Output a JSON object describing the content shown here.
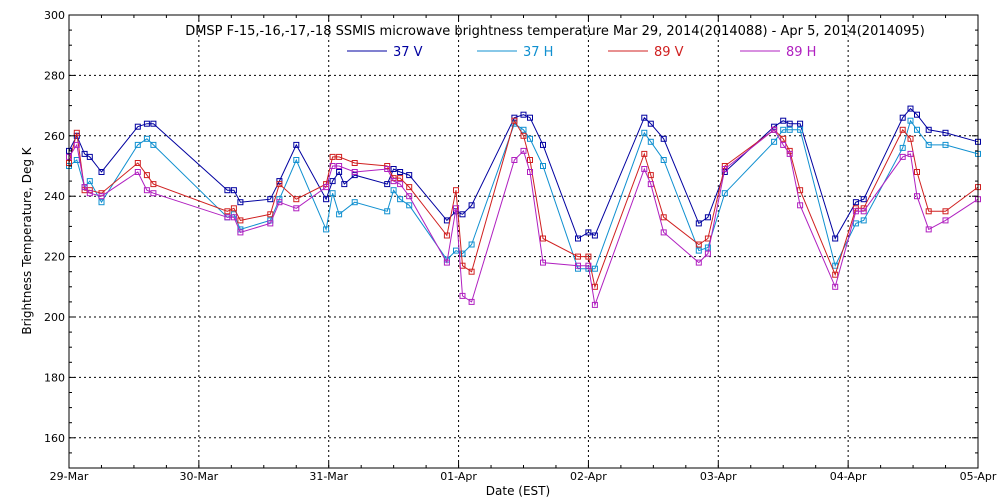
{
  "chart_data": {
    "type": "line",
    "title": "DMSP F-15,-16,-17,-18 SSMIS microwave brightness temperature Mar 29, 2014(2014088) - Apr  5, 2014(2014095)",
    "xlabel": "Date (EST)",
    "ylabel": "Brightness Temperature, Deg K",
    "ylim": [
      150,
      300
    ],
    "xlim": [
      0,
      7
    ],
    "yticks": [
      160,
      180,
      200,
      220,
      240,
      260,
      280,
      300
    ],
    "xticks": [
      {
        "value": 0,
        "label": "29-Mar"
      },
      {
        "value": 1,
        "label": "30-Mar"
      },
      {
        "value": 2,
        "label": "31-Mar"
      },
      {
        "value": 3,
        "label": "01-Apr"
      },
      {
        "value": 4,
        "label": "02-Apr"
      },
      {
        "value": 5,
        "label": "03-Apr"
      },
      {
        "value": 6,
        "label": "04-Apr"
      },
      {
        "value": 7,
        "label": "05-Apr"
      }
    ],
    "grid": true,
    "legend_position": "top",
    "series": [
      {
        "name": "37 V",
        "color": "#0000a0",
        "points": [
          [
            0.0,
            255
          ],
          [
            0.06,
            260
          ],
          [
            0.12,
            254
          ],
          [
            0.16,
            253
          ],
          [
            0.25,
            248
          ],
          [
            0.53,
            263
          ],
          [
            0.6,
            264
          ],
          [
            0.65,
            264
          ],
          [
            1.22,
            242
          ],
          [
            1.27,
            242
          ],
          [
            1.32,
            238
          ],
          [
            1.55,
            239
          ],
          [
            1.62,
            245
          ],
          [
            1.75,
            257
          ],
          [
            1.98,
            239
          ],
          [
            2.03,
            245
          ],
          [
            2.08,
            248
          ],
          [
            2.12,
            244
          ],
          [
            2.2,
            247
          ],
          [
            2.45,
            244
          ],
          [
            2.5,
            249
          ],
          [
            2.55,
            248
          ],
          [
            2.62,
            247
          ],
          [
            2.91,
            232
          ],
          [
            2.98,
            235
          ],
          [
            3.03,
            234
          ],
          [
            3.1,
            237
          ],
          [
            3.43,
            266
          ],
          [
            3.5,
            267
          ],
          [
            3.55,
            266
          ],
          [
            3.65,
            257
          ],
          [
            3.92,
            226
          ],
          [
            4.0,
            228
          ],
          [
            4.05,
            227
          ],
          [
            4.43,
            266
          ],
          [
            4.48,
            264
          ],
          [
            4.58,
            259
          ],
          [
            4.85,
            231
          ],
          [
            4.92,
            233
          ],
          [
            5.05,
            248
          ],
          [
            5.43,
            263
          ],
          [
            5.5,
            265
          ],
          [
            5.55,
            264
          ],
          [
            5.63,
            264
          ],
          [
            5.9,
            226
          ],
          [
            6.06,
            238
          ],
          [
            6.12,
            239
          ],
          [
            6.42,
            266
          ],
          [
            6.48,
            269
          ],
          [
            6.53,
            267
          ],
          [
            6.62,
            262
          ],
          [
            6.75,
            261
          ],
          [
            7.0,
            258
          ]
        ]
      },
      {
        "name": "37 H",
        "color": "#1090d0",
        "points": [
          [
            0.0,
            250
          ],
          [
            0.06,
            252
          ],
          [
            0.12,
            243
          ],
          [
            0.16,
            245
          ],
          [
            0.25,
            238
          ],
          [
            0.53,
            257
          ],
          [
            0.6,
            259
          ],
          [
            0.65,
            257
          ],
          [
            1.22,
            233
          ],
          [
            1.27,
            234
          ],
          [
            1.32,
            229
          ],
          [
            1.55,
            232
          ],
          [
            1.62,
            239
          ],
          [
            1.75,
            252
          ],
          [
            1.98,
            229
          ],
          [
            2.03,
            241
          ],
          [
            2.08,
            234
          ],
          [
            2.2,
            238
          ],
          [
            2.45,
            235
          ],
          [
            2.5,
            242
          ],
          [
            2.55,
            239
          ],
          [
            2.62,
            237
          ],
          [
            2.91,
            219
          ],
          [
            2.98,
            222
          ],
          [
            3.03,
            221
          ],
          [
            3.1,
            224
          ],
          [
            3.43,
            264
          ],
          [
            3.5,
            262
          ],
          [
            3.55,
            259
          ],
          [
            3.65,
            250
          ],
          [
            3.92,
            216
          ],
          [
            4.0,
            216
          ],
          [
            4.05,
            216
          ],
          [
            4.43,
            261
          ],
          [
            4.48,
            258
          ],
          [
            4.58,
            252
          ],
          [
            4.85,
            222
          ],
          [
            4.92,
            223
          ],
          [
            5.05,
            241
          ],
          [
            5.43,
            258
          ],
          [
            5.5,
            262
          ],
          [
            5.55,
            262
          ],
          [
            5.63,
            262
          ],
          [
            5.9,
            217
          ],
          [
            6.06,
            231
          ],
          [
            6.12,
            232
          ],
          [
            6.42,
            256
          ],
          [
            6.48,
            265
          ],
          [
            6.53,
            262
          ],
          [
            6.62,
            257
          ],
          [
            6.75,
            257
          ],
          [
            7.0,
            254
          ]
        ]
      },
      {
        "name": "89 V",
        "color": "#d02020",
        "points": [
          [
            0.0,
            251
          ],
          [
            0.06,
            261
          ],
          [
            0.12,
            242
          ],
          [
            0.16,
            242
          ],
          [
            0.25,
            241
          ],
          [
            0.53,
            251
          ],
          [
            0.6,
            247
          ],
          [
            0.65,
            244
          ],
          [
            1.22,
            235
          ],
          [
            1.27,
            236
          ],
          [
            1.32,
            232
          ],
          [
            1.55,
            234
          ],
          [
            1.62,
            244
          ],
          [
            1.75,
            239
          ],
          [
            1.98,
            244
          ],
          [
            2.03,
            253
          ],
          [
            2.08,
            253
          ],
          [
            2.2,
            251
          ],
          [
            2.45,
            250
          ],
          [
            2.5,
            246
          ],
          [
            2.55,
            246
          ],
          [
            2.62,
            243
          ],
          [
            2.91,
            227
          ],
          [
            2.98,
            242
          ],
          [
            3.03,
            217
          ],
          [
            3.1,
            215
          ],
          [
            3.43,
            265
          ],
          [
            3.5,
            260
          ],
          [
            3.55,
            252
          ],
          [
            3.65,
            226
          ],
          [
            3.92,
            220
          ],
          [
            4.0,
            220
          ],
          [
            4.05,
            210
          ],
          [
            4.43,
            254
          ],
          [
            4.48,
            247
          ],
          [
            4.58,
            233
          ],
          [
            4.85,
            224
          ],
          [
            4.92,
            226
          ],
          [
            5.05,
            250
          ],
          [
            5.43,
            262
          ],
          [
            5.5,
            259
          ],
          [
            5.55,
            255
          ],
          [
            5.63,
            242
          ],
          [
            5.9,
            214
          ],
          [
            6.06,
            236
          ],
          [
            6.12,
            236
          ],
          [
            6.42,
            262
          ],
          [
            6.48,
            259
          ],
          [
            6.53,
            248
          ],
          [
            6.62,
            235
          ],
          [
            6.75,
            235
          ],
          [
            7.0,
            243
          ]
        ]
      },
      {
        "name": "89 H",
        "color": "#b020c0",
        "points": [
          [
            0.0,
            253
          ],
          [
            0.06,
            257
          ],
          [
            0.12,
            243
          ],
          [
            0.16,
            241
          ],
          [
            0.25,
            240
          ],
          [
            0.53,
            248
          ],
          [
            0.6,
            242
          ],
          [
            0.65,
            241
          ],
          [
            1.22,
            233
          ],
          [
            1.27,
            233
          ],
          [
            1.32,
            228
          ],
          [
            1.55,
            231
          ],
          [
            1.62,
            238
          ],
          [
            1.75,
            236
          ],
          [
            1.98,
            243
          ],
          [
            2.03,
            250
          ],
          [
            2.08,
            250
          ],
          [
            2.2,
            248
          ],
          [
            2.45,
            249
          ],
          [
            2.5,
            245
          ],
          [
            2.55,
            244
          ],
          [
            2.62,
            240
          ],
          [
            2.91,
            218
          ],
          [
            2.98,
            236
          ],
          [
            3.03,
            207
          ],
          [
            3.1,
            205
          ],
          [
            3.43,
            252
          ],
          [
            3.5,
            255
          ],
          [
            3.55,
            248
          ],
          [
            3.65,
            218
          ],
          [
            3.92,
            217
          ],
          [
            4.0,
            217
          ],
          [
            4.05,
            204
          ],
          [
            4.43,
            249
          ],
          [
            4.48,
            244
          ],
          [
            4.58,
            228
          ],
          [
            4.85,
            218
          ],
          [
            4.92,
            221
          ],
          [
            5.05,
            249
          ],
          [
            5.43,
            262
          ],
          [
            5.5,
            257
          ],
          [
            5.55,
            254
          ],
          [
            5.63,
            237
          ],
          [
            5.9,
            210
          ],
          [
            6.06,
            235
          ],
          [
            6.12,
            235
          ],
          [
            6.42,
            253
          ],
          [
            6.48,
            254
          ],
          [
            6.53,
            240
          ],
          [
            6.62,
            229
          ],
          [
            6.75,
            232
          ],
          [
            7.0,
            239
          ]
        ]
      }
    ]
  }
}
